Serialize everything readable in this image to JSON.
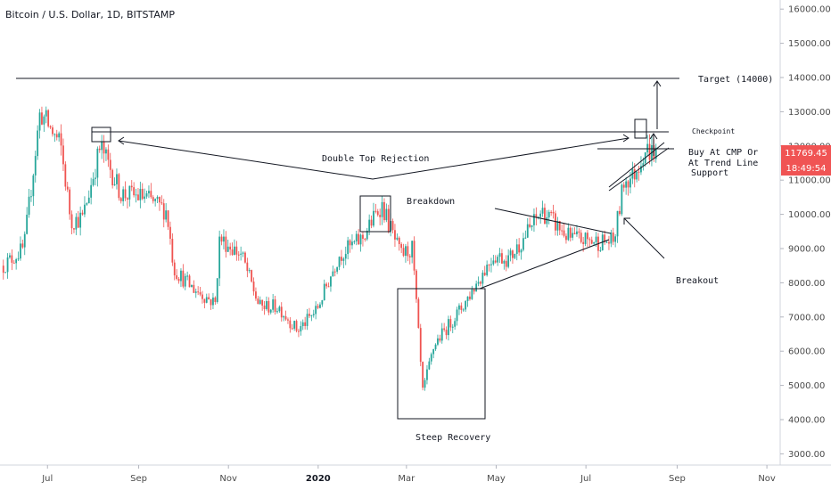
{
  "symbol_title": "Bitcoin / U.S. Dollar, 1D, BITSTAMP",
  "price_tag": {
    "value": "11769.45",
    "countdown": "18:49:54",
    "color": "#f05454"
  },
  "colors": {
    "up": "#26a69a",
    "down": "#ef5350",
    "line": "#131722"
  },
  "annotations": {
    "target": "Target (14000)",
    "checkpoint": "Checkpoint",
    "buy_line1": "Buy At CMP Or",
    "buy_line2": "At Trend Line",
    "buy_line3": "Support",
    "double_top": "Double Top Rejection",
    "breakdown": "Breakdown",
    "breakout": "Breakout",
    "steep_recovery": "Steep Recovery"
  },
  "chart_data": {
    "type": "candlestick",
    "title": "Bitcoin / U.S. Dollar, 1D, BITSTAMP",
    "ylim": [
      2500,
      16500
    ],
    "y_ticks": [
      "3000.00",
      "4000.00",
      "5000.00",
      "6000.00",
      "7000.00",
      "8000.00",
      "9000.00",
      "10000.00",
      "11000.00",
      "12000.00",
      "13000.00",
      "14000.00",
      "15000.00",
      "16000.00"
    ],
    "x_ticks": [
      "Jul",
      "Sep",
      "Nov",
      "2020",
      "Mar",
      "May",
      "Jul",
      "Sep",
      "Nov"
    ],
    "last_price": 11769.45,
    "series": [
      {
        "points": [
          [
            "2019-06-01",
            8500
          ],
          [
            "2019-06-15",
            9000
          ],
          [
            "2019-06-26",
            13000
          ],
          [
            "2019-07-10",
            12000
          ],
          [
            "2019-07-17",
            9800
          ],
          [
            "2019-07-25",
            9900
          ],
          [
            "2019-08-06",
            12000
          ],
          [
            "2019-08-20",
            10600
          ],
          [
            "2019-09-05",
            10500
          ],
          [
            "2019-09-20",
            10100
          ],
          [
            "2019-09-25",
            8400
          ],
          [
            "2019-10-06",
            7900
          ],
          [
            "2019-10-23",
            7400
          ],
          [
            "2019-10-26",
            9300
          ],
          [
            "2019-11-10",
            8800
          ],
          [
            "2019-11-22",
            7300
          ],
          [
            "2019-12-05",
            7300
          ],
          [
            "2019-12-18",
            6600
          ],
          [
            "2019-12-31",
            7200
          ],
          [
            "2020-01-15",
            8800
          ],
          [
            "2020-01-31",
            9300
          ],
          [
            "2020-02-13",
            10300
          ],
          [
            "2020-02-26",
            8800
          ],
          [
            "2020-03-05",
            9000
          ],
          [
            "2020-03-12",
            4800
          ],
          [
            "2020-03-20",
            6200
          ],
          [
            "2020-04-08",
            7300
          ],
          [
            "2020-04-29",
            8800
          ],
          [
            "2020-05-10",
            8700
          ],
          [
            "2020-06-01",
            10100
          ],
          [
            "2020-06-20",
            9300
          ],
          [
            "2020-07-10",
            9200
          ],
          [
            "2020-07-20",
            9200
          ],
          [
            "2020-07-27",
            11000
          ],
          [
            "2020-08-02",
            11100
          ],
          [
            "2020-08-10",
            11900
          ],
          [
            "2020-08-19",
            11769
          ]
        ]
      }
    ]
  }
}
